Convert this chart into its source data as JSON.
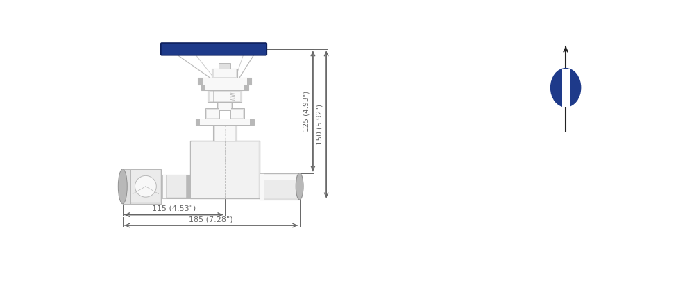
{
  "background_color": "#ffffff",
  "valve_color_light": "#e0e0e0",
  "valve_color_mid": "#b8b8b8",
  "valve_color_dark": "#909090",
  "valve_color_white": "#f8f8f8",
  "valve_color_vlight": "#ebebeb",
  "handle_color": "#1e3a8a",
  "handle_edge_color": "#0d1f5c",
  "dim_color": "#666666",
  "blue_circle_color": "#1e3a8a",
  "dim_125": "125 (4.93\")",
  "dim_150": "150 (5.92\")",
  "dim_115": "115 (4.53\")",
  "dim_185": "185 (7.28\")"
}
